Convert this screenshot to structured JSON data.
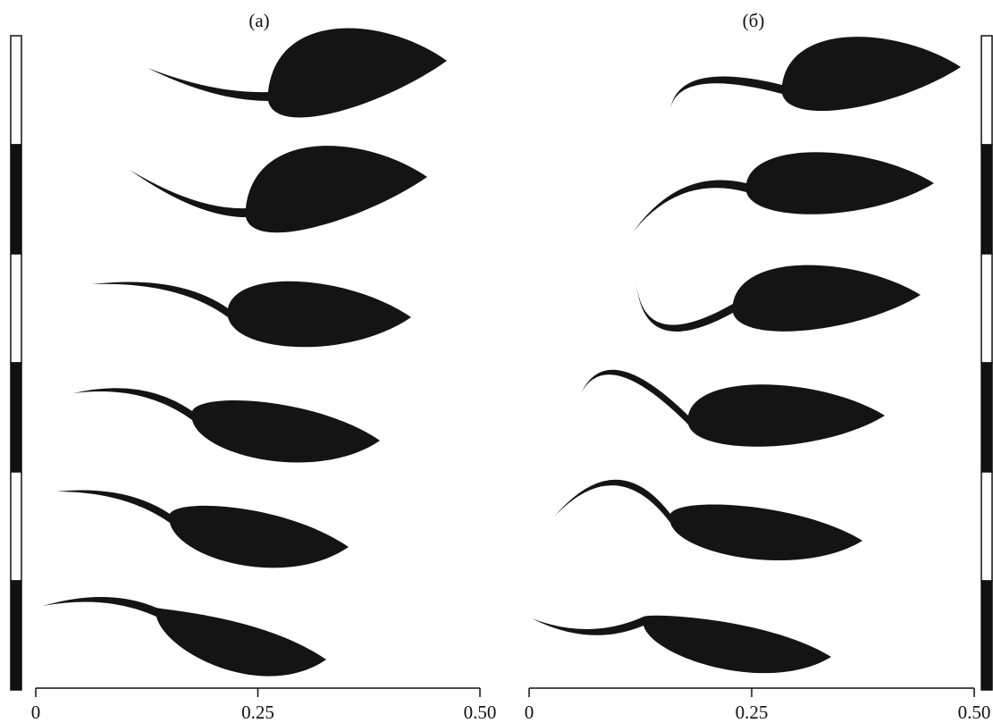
{
  "panels": [
    {
      "label": "(a)",
      "xlim": [
        0,
        0.5
      ],
      "ticks": [
        0,
        0.25,
        {
          "value": 0.5,
          "label": "0.50"
        }
      ]
    },
    {
      "label": "(б)",
      "xlim": [
        0,
        0.5
      ],
      "ticks": [
        0,
        0.25,
        {
          "value": 0.5,
          "label": "0.50"
        }
      ]
    }
  ]
}
